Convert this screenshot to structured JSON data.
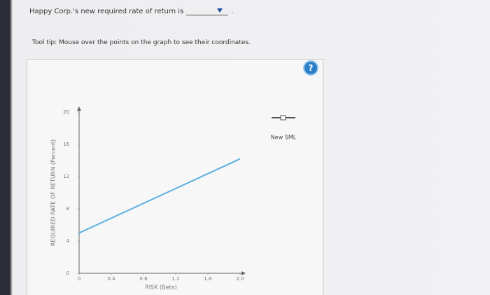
{
  "question": {
    "text": "Happy Corp.'s new required rate of return is",
    "suffix": "."
  },
  "tooltip": "Tool tip: Mouse over the points on the graph to see their coordinates.",
  "help": "?",
  "chart_data": {
    "type": "line",
    "x_label": "RISK (Beta)",
    "y_label": "REQUIRED RATE OF RETURN (Percent)",
    "x": [
      0,
      2
    ],
    "series": [
      {
        "name": "New SML",
        "color": "#5aaee0",
        "values": [
          5,
          14.2
        ]
      }
    ],
    "xlim": [
      0,
      2
    ],
    "ylim": [
      0,
      20
    ],
    "xticks": [
      0,
      0.4,
      0.8,
      1.2,
      1.6,
      {
        "value": 2,
        "label": "2.0"
      }
    ],
    "yticks": [
      0,
      4,
      8,
      12,
      16,
      20
    ]
  }
}
